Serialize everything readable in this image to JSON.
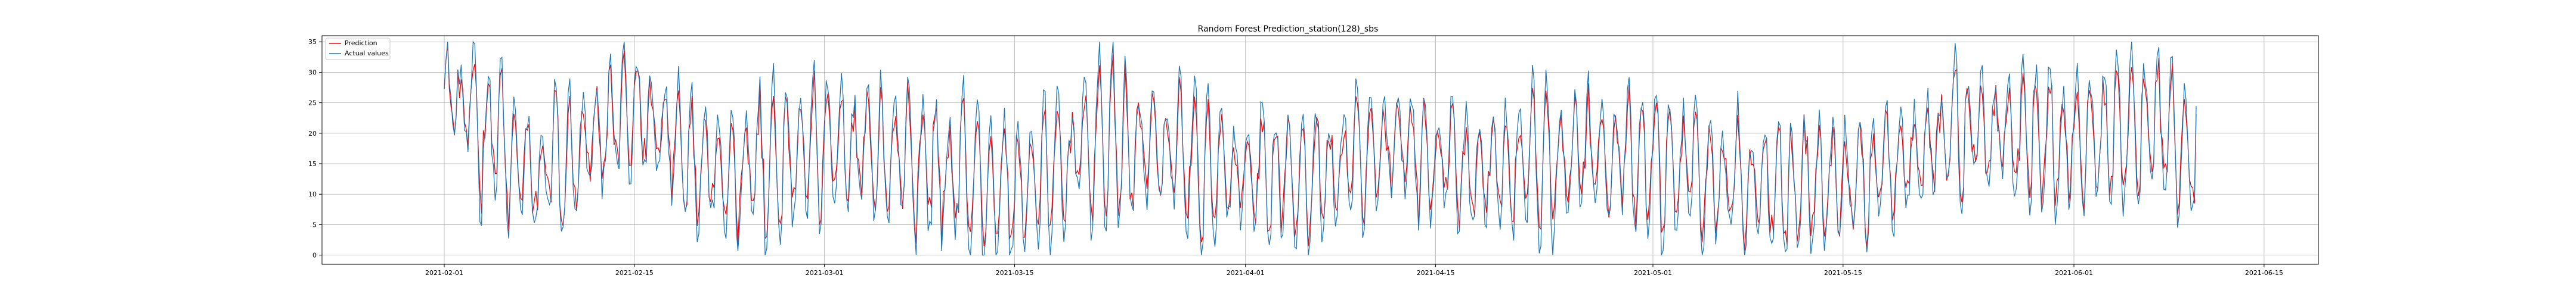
{
  "chart_data": {
    "type": "line",
    "title": "Random Forest Prediction_station(128)_sbs",
    "xlabel": "",
    "ylabel": "",
    "x_range": [
      "2021-01-23",
      "2021-06-19"
    ],
    "data_range": [
      "2021-02-01",
      "2021-06-10"
    ],
    "ylim": [
      -1.5,
      36.0
    ],
    "x_ticks": [
      "2021-02-01",
      "2021-02-15",
      "2021-03-01",
      "2021-03-15",
      "2021-04-01",
      "2021-04-15",
      "2021-05-01",
      "2021-05-15",
      "2021-06-01",
      "2021-06-15"
    ],
    "y_ticks": [
      "0",
      "5",
      "10",
      "15",
      "20",
      "25",
      "30",
      "35"
    ],
    "grid": true,
    "legend_position": "upper-left",
    "series": [
      {
        "name": "Prediction",
        "color": "#ff0000",
        "x": [
          "2021-02-01",
          "2021-02-08",
          "2021-02-15",
          "2021-02-22",
          "2021-03-01",
          "2021-03-08",
          "2021-03-15",
          "2021-03-22",
          "2021-03-29",
          "2021-04-05",
          "2021-04-12",
          "2021-04-19",
          "2021-04-26",
          "2021-05-03",
          "2021-05-10",
          "2021-05-17",
          "2021-05-24",
          "2021-05-31",
          "2021-06-07",
          "2021-06-10"
        ],
        "values": [
          26,
          14,
          22,
          14,
          18,
          16,
          12,
          19,
          15,
          14,
          17,
          15,
          16,
          15,
          13,
          14,
          20,
          19,
          21,
          16
        ]
      },
      {
        "name": "Actual values",
        "color": "#1f77b4",
        "x": [
          "2021-02-01",
          "2021-02-08",
          "2021-02-15",
          "2021-02-22",
          "2021-03-01",
          "2021-03-08",
          "2021-03-15",
          "2021-03-22",
          "2021-03-29",
          "2021-04-05",
          "2021-04-12",
          "2021-04-19",
          "2021-04-26",
          "2021-05-03",
          "2021-05-10",
          "2021-05-17",
          "2021-05-24",
          "2021-05-31",
          "2021-06-07",
          "2021-06-10"
        ],
        "values": [
          27,
          12,
          24,
          12,
          19,
          15,
          10,
          20,
          14,
          12,
          18,
          13,
          17,
          14,
          11,
          13,
          21,
          18,
          22,
          15
        ]
      }
    ]
  }
}
